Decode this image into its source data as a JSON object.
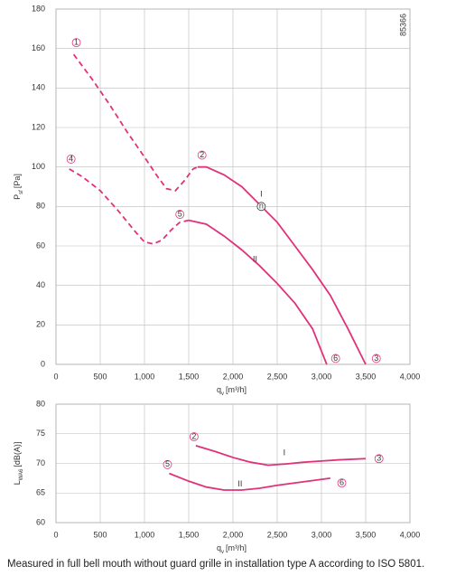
{
  "chart_data": [
    {
      "type": "line",
      "y_label": "P",
      "y_label_sub": "sf",
      "y_label_unit": "[Pa]",
      "x_label": "q",
      "x_label_sub": "v",
      "x_label_unit": "[m³/h]",
      "xlim": [
        0,
        4000
      ],
      "ylim": [
        0,
        180
      ],
      "xticks": [
        0,
        500,
        {
          "value": 1000,
          "label": "1,000"
        },
        {
          "value": 1500,
          "label": "1,500"
        },
        {
          "value": 2000,
          "label": "2,000"
        },
        {
          "value": 2500,
          "label": "2,500"
        },
        {
          "value": 3000,
          "label": "3,000"
        },
        {
          "value": 3500,
          "label": "3,500"
        },
        {
          "value": 4000,
          "label": "4,000"
        }
      ],
      "yticks": [
        0,
        20,
        40,
        60,
        80,
        100,
        120,
        140,
        160,
        180
      ],
      "grid": true,
      "series": [
        {
          "color": "#e0327a",
          "style": "dashed",
          "x": [
            200,
            400,
            600,
            800,
            1000,
            1150,
            1250,
            1350,
            1450,
            1550,
            1600
          ],
          "values": [
            157,
            145,
            132,
            118,
            105,
            95,
            89,
            88,
            93,
            99,
            100
          ]
        },
        {
          "color": "#e0327a",
          "style": "solid",
          "x": [
            1600,
            1700,
            1900,
            2100,
            2300,
            2500,
            2700,
            2900,
            3100,
            3300,
            3500
          ],
          "values": [
            100,
            100,
            96,
            90,
            81,
            72,
            60,
            48,
            35,
            18,
            0
          ]
        },
        {
          "color": "#e0327a",
          "style": "dashed",
          "x": [
            150,
            300,
            500,
            700,
            900,
            1000,
            1100,
            1200,
            1300,
            1400,
            1500
          ],
          "values": [
            99,
            95,
            88,
            78,
            67,
            62,
            61,
            63,
            68,
            72,
            73
          ]
        },
        {
          "color": "#e0327a",
          "style": "solid",
          "x": [
            1500,
            1700,
            1900,
            2100,
            2300,
            2500,
            2700,
            2900,
            3060
          ],
          "values": [
            73,
            71,
            65,
            58,
            50,
            41,
            31,
            18,
            0
          ]
        }
      ],
      "annotations": [
        {
          "text": "1",
          "x": 230,
          "y": 163,
          "circled": true
        },
        {
          "text": "2",
          "x": 1650,
          "y": 106,
          "circled": true
        },
        {
          "text": "3",
          "x": 3620,
          "y": 3,
          "circled": true
        },
        {
          "text": "4",
          "x": 170,
          "y": 104,
          "circled": true
        },
        {
          "text": "5",
          "x": 1400,
          "y": 76,
          "circled": true
        },
        {
          "text": "6",
          "x": 3160,
          "y": 3,
          "circled": true
        },
        {
          "text": "n",
          "x": 2320,
          "y": 80,
          "circled": true
        },
        {
          "text": "I",
          "x": 2320,
          "y": 86,
          "circled": false
        },
        {
          "text": "II",
          "x": 2250,
          "y": 53,
          "circled": false
        },
        {
          "text": "85366",
          "x": 3930,
          "y": 172,
          "circled": false,
          "rotated": true
        }
      ]
    },
    {
      "type": "line",
      "y_label": "L",
      "y_label_sub": "WA6",
      "y_label_unit": "[dB(A)]",
      "x_label": "q",
      "x_label_sub": "v",
      "x_label_unit": "[m³/h]",
      "xlim": [
        0,
        4000
      ],
      "ylim": [
        60,
        80
      ],
      "xticks": [
        0,
        500,
        {
          "value": 1000,
          "label": "1,000"
        },
        {
          "value": 1500,
          "label": "1,500"
        },
        {
          "value": 2000,
          "label": "2,000"
        },
        {
          "value": 2500,
          "label": "2,500"
        },
        {
          "value": 3000,
          "label": "3,000"
        },
        {
          "value": 3500,
          "label": "3,500"
        },
        {
          "value": 4000,
          "label": "4,000"
        }
      ],
      "yticks": [
        60,
        65,
        70,
        75,
        80
      ],
      "grid": true,
      "series": [
        {
          "color": "#e0327a",
          "style": "solid",
          "x": [
            1580,
            1800,
            2000,
            2200,
            2400,
            2600,
            2800,
            3000,
            3200,
            3500
          ],
          "values": [
            73,
            72,
            71,
            70.2,
            69.7,
            69.9,
            70.2,
            70.4,
            70.6,
            70.8
          ]
        },
        {
          "color": "#e0327a",
          "style": "solid",
          "x": [
            1280,
            1500,
            1700,
            1900,
            2100,
            2300,
            2500,
            2700,
            2900,
            3100
          ],
          "values": [
            68.3,
            67,
            66,
            65.5,
            65.5,
            65.8,
            66.3,
            66.7,
            67.1,
            67.5
          ]
        }
      ],
      "annotations": [
        {
          "text": "2",
          "x": 1560,
          "y": 74.5,
          "circled": true
        },
        {
          "text": "3",
          "x": 3650,
          "y": 70.8,
          "circled": true
        },
        {
          "text": "5",
          "x": 1260,
          "y": 69.8,
          "circled": true
        },
        {
          "text": "6",
          "x": 3230,
          "y": 66.7,
          "circled": true
        },
        {
          "text": "I",
          "x": 2580,
          "y": 71.7,
          "circled": false
        },
        {
          "text": "II",
          "x": 2080,
          "y": 66.5,
          "circled": false
        }
      ]
    }
  ],
  "footnote": "Measured in full bell mouth without guard grille in installation type A according to ISO 5801."
}
